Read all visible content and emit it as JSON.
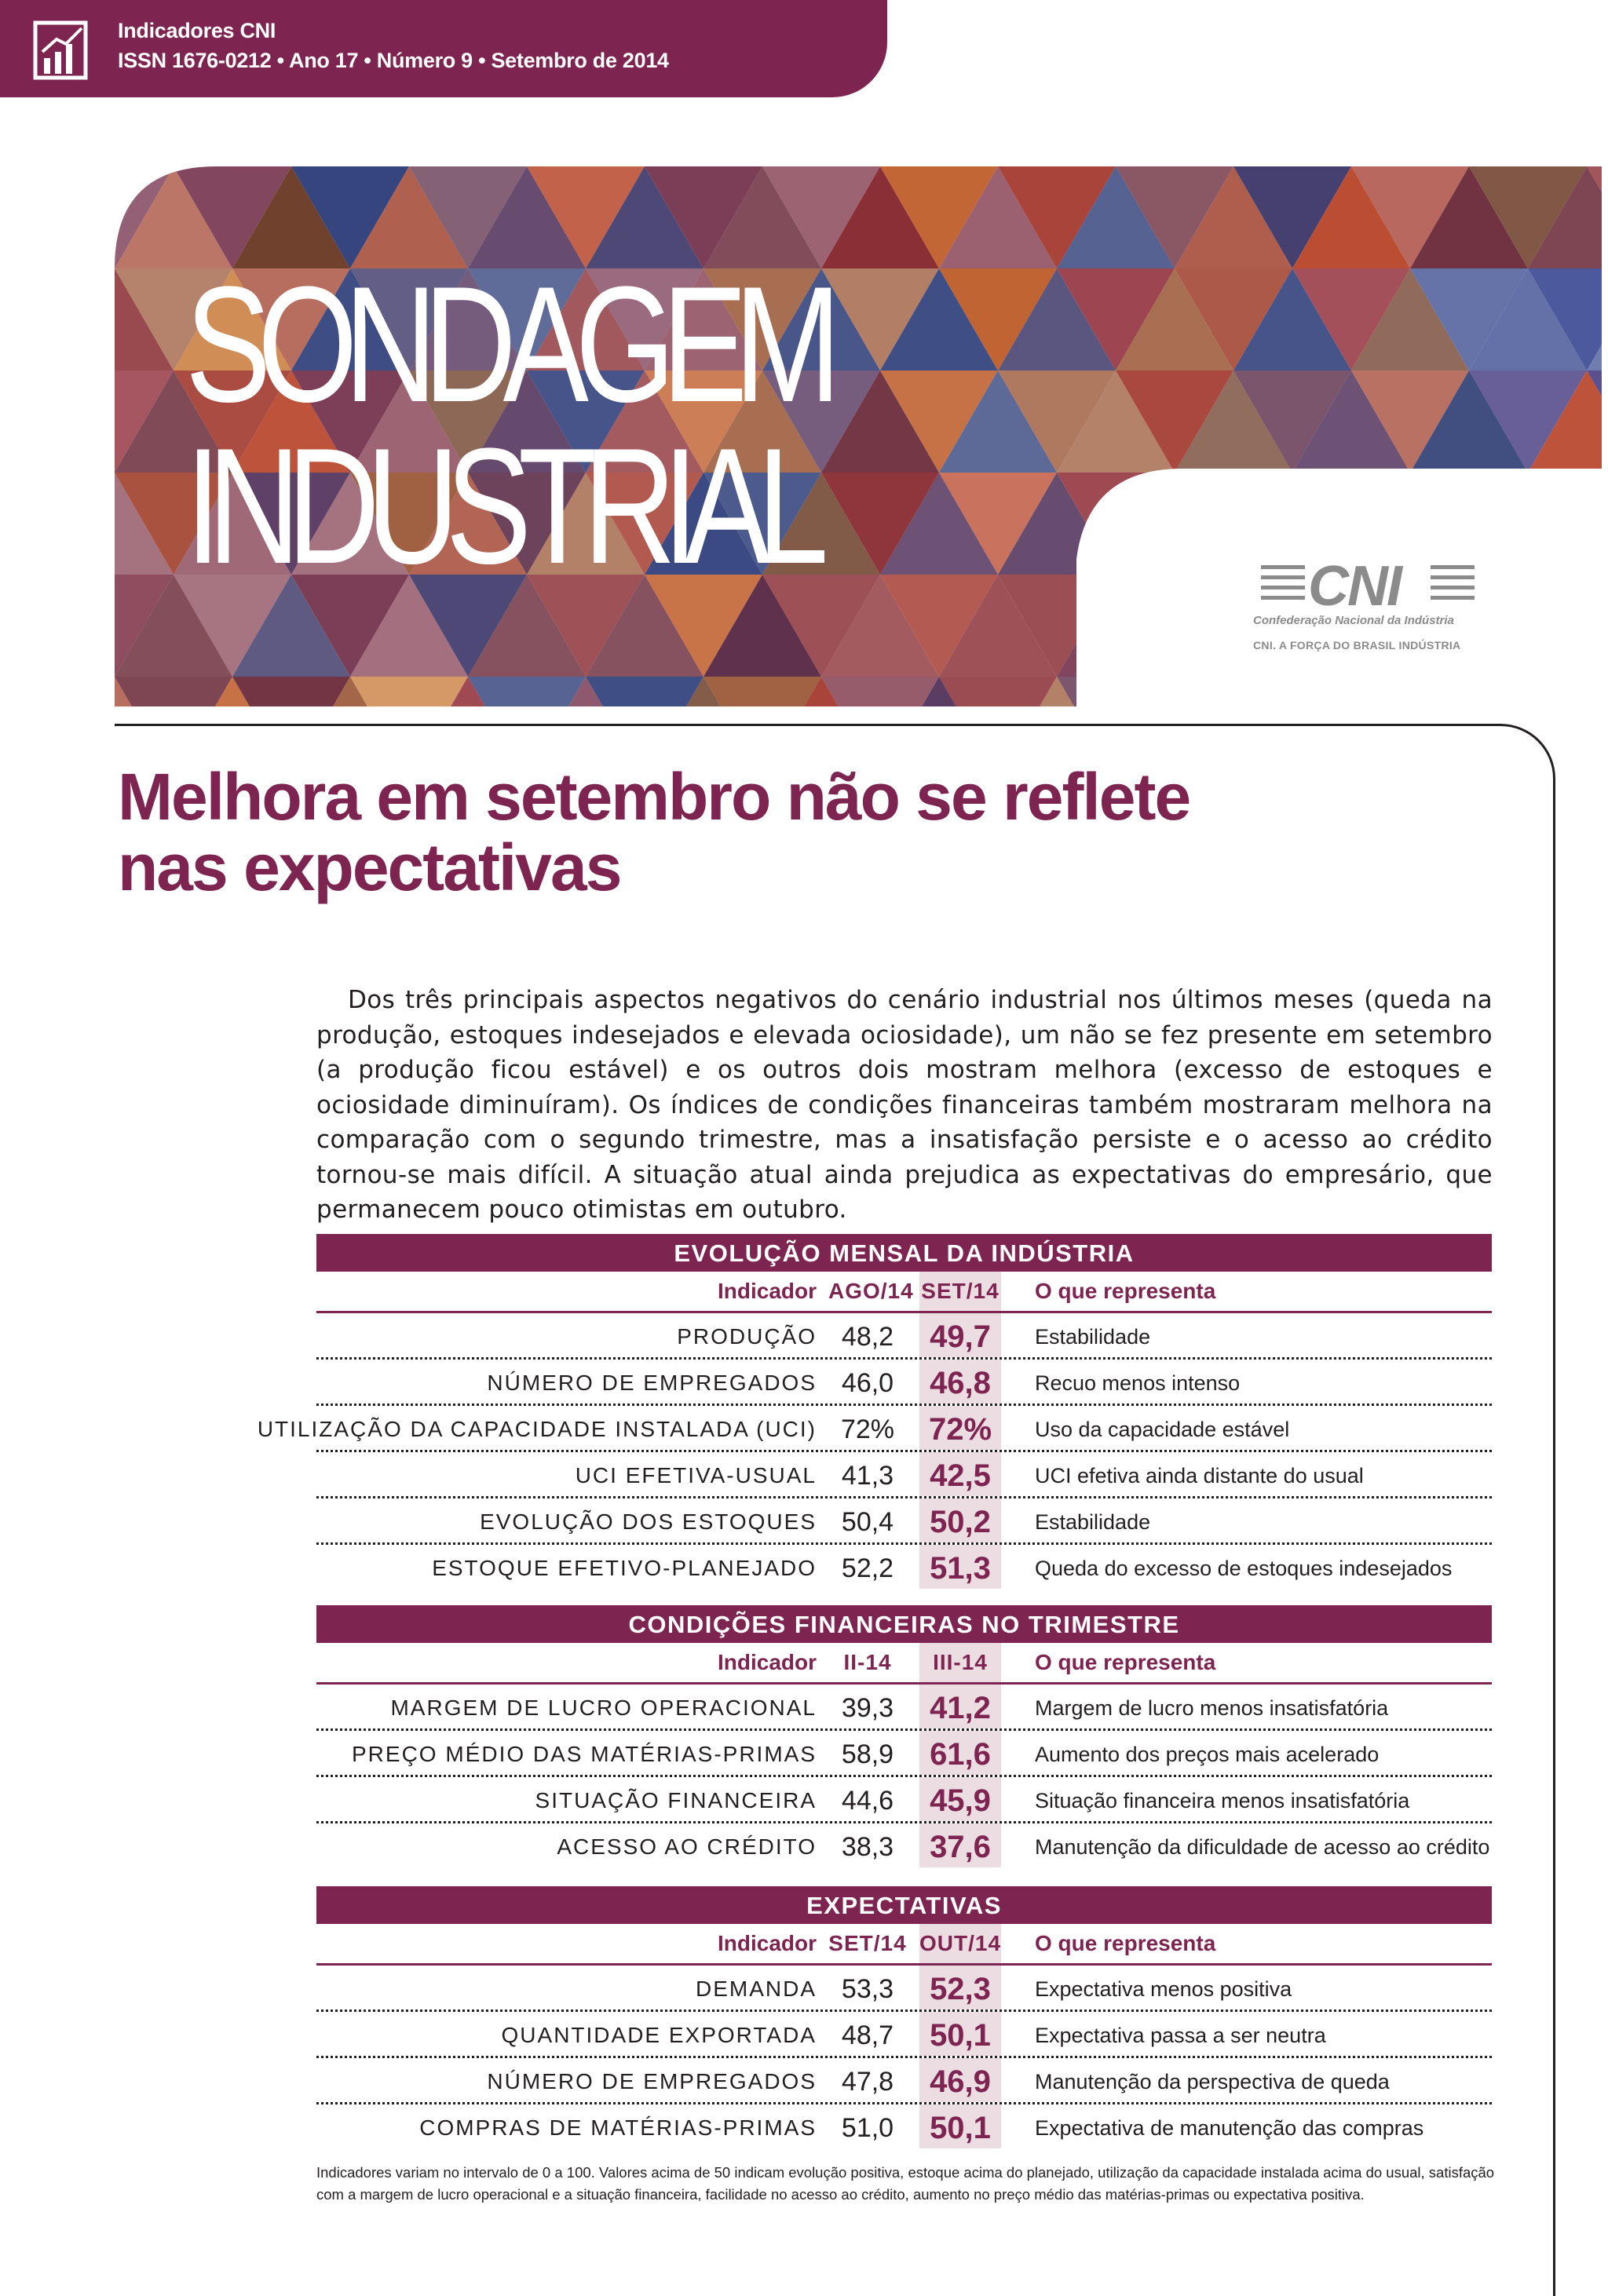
{
  "header": {
    "series": "Indicadores CNI",
    "issn": "ISSN 1676-0212 • Ano 17 • Número 9 • Setembro de 2014"
  },
  "hero": {
    "title_line1": "SONDAGEM",
    "title_line2": "INDUSTRIAL"
  },
  "logo": {
    "name": "CNI",
    "subtitle": "Confederação Nacional da Indústria",
    "tagline": "CNI. A FORÇA DO BRASIL INDÚSTRIA"
  },
  "article": {
    "headline_line1": "Melhora em setembro não se reflete",
    "headline_line2": "nas expectativas",
    "lead": "Dos três principais aspectos negativos do cenário industrial nos últimos meses (queda na produção, estoques indesejados e elevada ociosidade), um não se fez presente em setembro (a produção ficou estável) e os outros dois mostram melhora (excesso de estoques e ociosidade diminuíram).  Os índices de condições financeiras também mostraram melhora na comparação com o segundo trimestre, mas a insatisfação persiste e o acesso ao crédito tornou-se mais difícil. A situação atual ainda prejudica as expectativas do empresário, que permanecem pouco otimistas em outubro."
  },
  "tables": [
    {
      "title": "EVOLUÇÃO MENSAL DA INDÚSTRIA",
      "col_indicator": "Indicador",
      "col_prev": "AGO/14",
      "col_cur": "SET/14",
      "col_what": "O que representa",
      "rows": [
        {
          "indicator": "PRODUÇÃO",
          "prev": "48,2",
          "cur": "49,7",
          "what": "Estabilidade"
        },
        {
          "indicator": "NÚMERO DE EMPREGADOS",
          "prev": "46,0",
          "cur": "46,8",
          "what": "Recuo menos intenso"
        },
        {
          "indicator": "UTILIZAÇÃO DA CAPACIDADE INSTALADA (UCI)",
          "prev": "72%",
          "cur": "72%",
          "what": "Uso da capacidade estável"
        },
        {
          "indicator": "UCI EFETIVA-USUAL",
          "prev": "41,3",
          "cur": "42,5",
          "what": "UCI efetiva ainda distante do usual"
        },
        {
          "indicator": "EVOLUÇÃO DOS ESTOQUES",
          "prev": "50,4",
          "cur": "50,2",
          "what": "Estabilidade"
        },
        {
          "indicator": "ESTOQUE EFETIVO-PLANEJADO",
          "prev": "52,2",
          "cur": "51,3",
          "what": "Queda do excesso de estoques indesejados"
        }
      ]
    },
    {
      "title": "CONDIÇÕES FINANCEIRAS NO TRIMESTRE",
      "col_indicator": "Indicador",
      "col_prev": "II-14",
      "col_cur": "III-14",
      "col_what": "O que representa",
      "rows": [
        {
          "indicator": "MARGEM DE LUCRO OPERACIONAL",
          "prev": "39,3",
          "cur": "41,2",
          "what": "Margem de lucro menos insatisfatória"
        },
        {
          "indicator": "PREÇO MÉDIO DAS MATÉRIAS-PRIMAS",
          "prev": "58,9",
          "cur": "61,6",
          "what": "Aumento dos preços mais acelerado"
        },
        {
          "indicator": "SITUAÇÃO FINANCEIRA",
          "prev": "44,6",
          "cur": "45,9",
          "what": "Situação financeira menos insatisfatória"
        },
        {
          "indicator": "ACESSO AO CRÉDITO",
          "prev": "38,3",
          "cur": "37,6",
          "what": "Manutenção da dificuldade de acesso ao crédito"
        }
      ]
    },
    {
      "title": "EXPECTATIVAS",
      "col_indicator": "Indicador",
      "col_prev": "SET/14",
      "col_cur": "OUT/14",
      "col_what": "O que representa",
      "rows": [
        {
          "indicator": "DEMANDA",
          "prev": "53,3",
          "cur": "52,3",
          "what": "Expectativa menos positiva"
        },
        {
          "indicator": "QUANTIDADE EXPORTADA",
          "prev": "48,7",
          "cur": "50,1",
          "what": "Expectativa passa a ser neutra"
        },
        {
          "indicator": "NÚMERO DE EMPREGADOS",
          "prev": "47,8",
          "cur": "46,9",
          "what": "Manutenção da perspectiva de queda"
        },
        {
          "indicator": "COMPRAS DE MATÉRIAS-PRIMAS",
          "prev": "51,0",
          "cur": "50,1",
          "what": "Expectativa de manutenção das compras"
        }
      ]
    }
  ],
  "footnote": "Indicadores variam no intervalo de 0 a 100. Valores acima de 50 indicam evolução positiva, estoque acima do planejado, utilização da capacidade instalada acima do usual, satisfação com a margem de lucro operacional e a situação financeira, facilidade no acesso ao crédito, aumento no preço médio das matérias-primas ou expectativa positiva.",
  "colors": {
    "brand": "#7e2450",
    "highlight_column": "#ecdde3",
    "logo_gray": "#8b8b8b"
  }
}
